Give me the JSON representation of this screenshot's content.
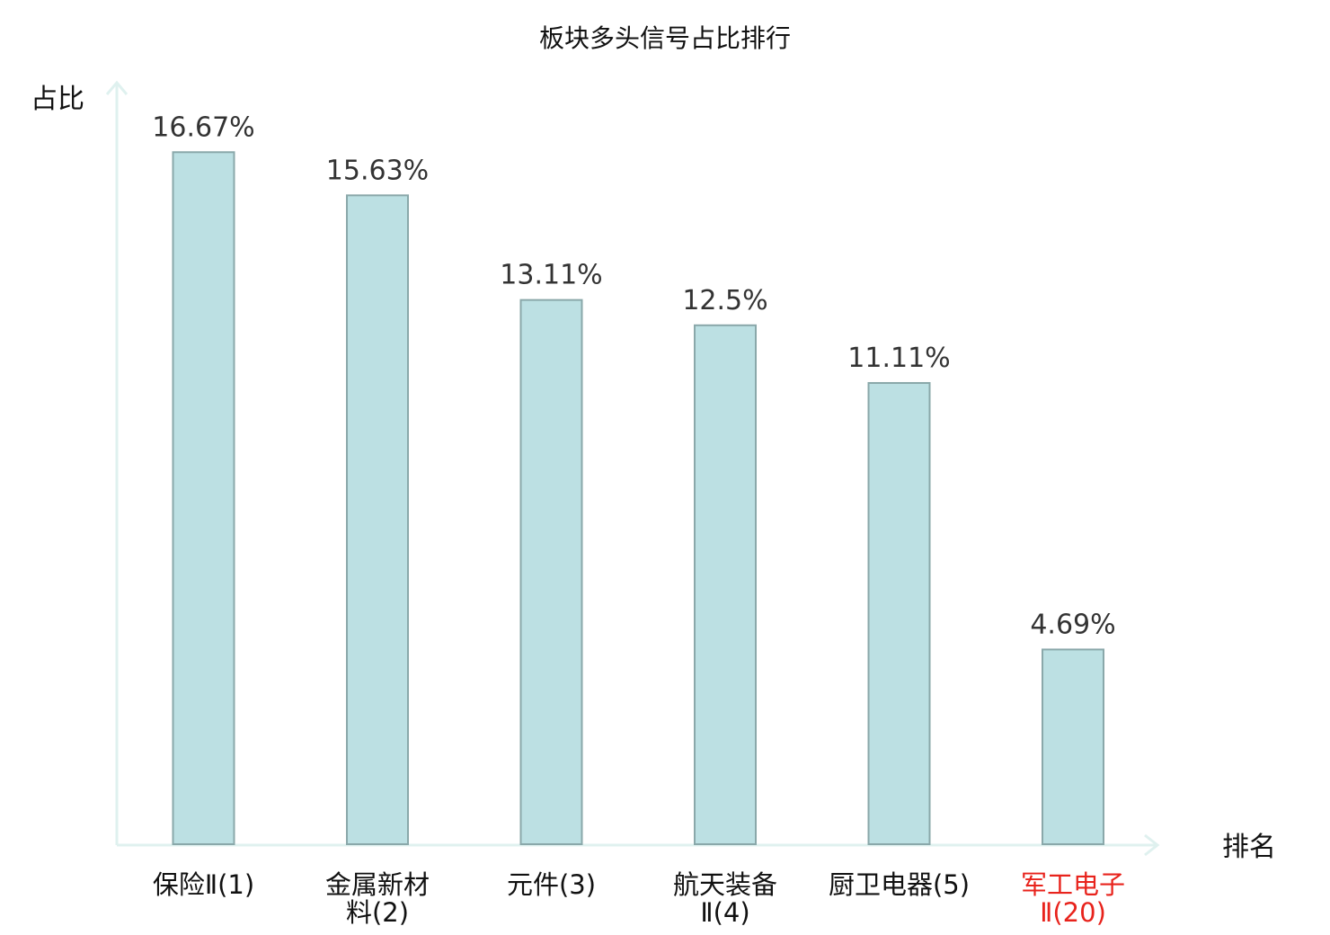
{
  "chart_data": {
    "type": "bar",
    "title": "板块多头信号占比排行",
    "ylabel": "占比",
    "xlabel": "排名",
    "ylim": [
      0,
      18.3
    ],
    "grid": false,
    "categories": [
      [
        "保险Ⅱ(1)"
      ],
      [
        "金属新材",
        "料(2)"
      ],
      [
        "元件(3)"
      ],
      [
        "航天装备",
        "Ⅱ(4)"
      ],
      [
        "厨卫电器(5)"
      ],
      [
        "军工电子",
        "Ⅱ(20)"
      ]
    ],
    "values": [
      16.67,
      15.63,
      13.11,
      12.5,
      11.11,
      4.69
    ],
    "value_labels": [
      "16.67%",
      "15.63%",
      "13.11%",
      "12.5%",
      "11.11%",
      "4.69%"
    ],
    "highlight_index": 5
  },
  "colors": {
    "bar_fill": "#bce0e3",
    "bar_stroke": "#8aa8aa",
    "axis": "#dff1ef",
    "text": "#111111",
    "value_text": "#333333",
    "highlight": "#e8231c"
  }
}
